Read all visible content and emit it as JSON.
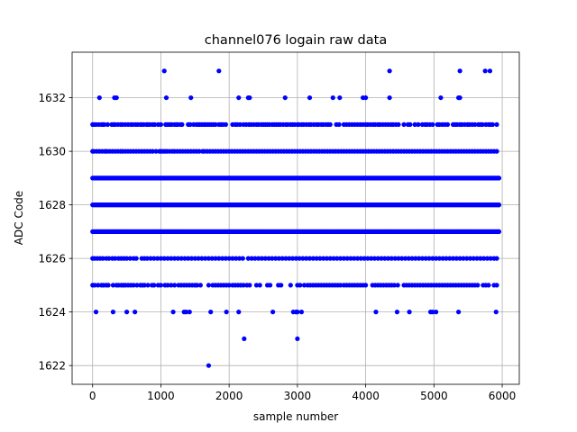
{
  "chart_data": {
    "type": "scatter",
    "title": "channel076 logain raw data",
    "xlabel": "sample number",
    "ylabel": "ADC Code",
    "xlim": [
      -300,
      6250
    ],
    "ylim": [
      1621.3,
      1633.7
    ],
    "xticks": [
      0,
      1000,
      2000,
      3000,
      4000,
      5000,
      6000
    ],
    "yticks": [
      1622,
      1624,
      1626,
      1628,
      1630,
      1632
    ],
    "xtick_labels": [
      "0",
      "1000",
      "2000",
      "3000",
      "4000",
      "5000",
      "6000"
    ],
    "ytick_labels": [
      "1622",
      "1624",
      "1626",
      "1628",
      "1630",
      "1632"
    ],
    "grid": true,
    "marker_color": "#0000ff",
    "n_samples": 6000,
    "series": [
      {
        "values_by_level": [
          {
            "y": 1633,
            "x": [
              1050,
              1850,
              4350,
              5380,
              5750,
              5820
            ]
          },
          {
            "y": 1632,
            "x": [
              100,
              320,
              350,
              1080,
              1440,
              2140,
              2280,
              2300,
              2820,
              3180,
              3520,
              3620,
              3960,
              4000,
              4350,
              5100,
              5360,
              5380
            ]
          },
          {
            "y": 1631,
            "x": [
              0,
              20,
              50,
              90,
              130,
              150,
              170,
              220,
              280,
              310,
              330,
              370,
              410,
              440,
              480,
              520,
              560,
              590,
              630,
              660,
              700,
              720,
              750,
              790,
              810,
              840,
              880,
              910,
              960,
              1000,
              1070,
              1100,
              1130,
              1160,
              1200,
              1230,
              1250,
              1290,
              1310,
              1400,
              1430,
              1480,
              1520,
              1550,
              1570,
              1600,
              1630,
              1650,
              1680,
              1710,
              1740,
              1770,
              1800,
              1850,
              1880,
              1910,
              1950,
              2050,
              2090,
              2120,
              2160,
              2210,
              2250,
              2290,
              2320,
              2360,
              2400,
              2430,
              2470,
              2500,
              2530,
              2560,
              2590,
              2630,
              2660,
              2690,
              2720,
              2750,
              2790,
              2830,
              2860,
              2900,
              2930,
              2960,
              3000,
              3020,
              3060,
              3090,
              3130,
              3170,
              3200,
              3240,
              3280,
              3310,
              3350,
              3380,
              3420,
              3450,
              3480,
              3570,
              3610,
              3680,
              3720,
              3760,
              3800,
              3840,
              3880,
              3920,
              3960,
              4000,
              4030,
              4070,
              4110,
              4140,
              4180,
              4210,
              4250,
              4290,
              4330,
              4370,
              4400,
              4440,
              4480,
              4560,
              4620,
              4650,
              4720,
              4770,
              4830,
              4870,
              4900,
              4940,
              4980,
              5050,
              5080,
              5120,
              5160,
              5200,
              5280,
              5310,
              5340,
              5380,
              5410,
              5450,
              5490,
              5520,
              5560,
              5600,
              5650,
              5680,
              5710,
              5760,
              5800,
              5830,
              5860,
              5920
            ]
          },
          {
            "y": 1630,
            "x": [
              0,
              20,
              60,
              100,
              140,
              180,
              210,
              250,
              290,
              330,
              370,
              410,
              440,
              480,
              520,
              560,
              600,
              640,
              680,
              720,
              760,
              800,
              840,
              880,
              930,
              980,
              1000,
              1030,
              1060,
              1090,
              1130,
              1170,
              1200,
              1240,
              1280,
              1320,
              1360,
              1400,
              1440,
              1480,
              1520,
              1560,
              1610,
              1640,
              1680,
              1720,
              1760,
              1800,
              1840,
              1880,
              1920,
              1960,
              2000,
              2040,
              2080,
              2120,
              2160,
              2200,
              2240,
              2280,
              2320,
              2360,
              2400,
              2440,
              2480,
              2520,
              2560,
              2600,
              2640,
              2680,
              2720,
              2760,
              2800,
              2840,
              2880,
              2920,
              2960,
              3000,
              3040,
              3080,
              3120,
              3160,
              3200,
              3240,
              3280,
              3320,
              3360,
              3400,
              3440,
              3480,
              3520,
              3560,
              3600,
              3640,
              3680,
              3720,
              3760,
              3800,
              3840,
              3880,
              3920,
              3960,
              4000,
              4040,
              4080,
              4120,
              4160,
              4200,
              4240,
              4280,
              4320,
              4360,
              4400,
              4440,
              4480,
              4520,
              4560,
              4600,
              4640,
              4680,
              4720,
              4760,
              4800,
              4840,
              4880,
              4920,
              4960,
              5000,
              5040,
              5080,
              5120,
              5160,
              5200,
              5240,
              5280,
              5320,
              5360,
              5400,
              5440,
              5480,
              5520,
              5560,
              5600,
              5640,
              5680,
              5720,
              5760,
              5800,
              5840,
              5880,
              5920
            ]
          }
        ],
        "dense_levels": [
          1629,
          1628,
          1627
        ],
        "sparse_levels": [
          {
            "y": 1626,
            "x": [
              0,
              30,
              70,
              110,
              150,
              200,
              240,
              290,
              330,
              380,
              420,
              460,
              500,
              550,
              600,
              640,
              720,
              760,
              800,
              850,
              900,
              950,
              1000,
              1050,
              1100,
              1150,
              1200,
              1250,
              1300,
              1350,
              1400,
              1450,
              1500,
              1550,
              1600,
              1650,
              1700,
              1750,
              1800,
              1850,
              1900,
              1950,
              2000,
              2050,
              2100,
              2150,
              2200,
              2280,
              2330,
              2380,
              2430,
              2480,
              2530,
              2580,
              2630,
              2680,
              2730,
              2780,
              2830,
              2880,
              2930,
              2980,
              3030,
              3080,
              3130,
              3180,
              3230,
              3280,
              3330,
              3380,
              3430,
              3480,
              3530,
              3580,
              3630,
              3680,
              3730,
              3780,
              3830,
              3880,
              3930,
              3980,
              4030,
              4080,
              4130,
              4180,
              4230,
              4280,
              4330,
              4380,
              4430,
              4480,
              4530,
              4580,
              4630,
              4680,
              4730,
              4780,
              4830,
              4880,
              4930,
              4980,
              5030,
              5080,
              5130,
              5180,
              5230,
              5280,
              5330,
              5380,
              5430,
              5480,
              5530,
              5580,
              5630,
              5680,
              5730,
              5780,
              5830,
              5880,
              5920
            ]
          },
          {
            "y": 1625,
            "x": [
              0,
              30,
              80,
              130,
              160,
              200,
              230,
              300,
              350,
              380,
              420,
              450,
              480,
              520,
              560,
              600,
              650,
              700,
              730,
              760,
              810,
              870,
              900,
              960,
              1000,
              1060,
              1100,
              1150,
              1200,
              1260,
              1300,
              1340,
              1380,
              1420,
              1460,
              1500,
              1530,
              1580,
              1700,
              1760,
              1800,
              1840,
              1880,
              1920,
              1960,
              2000,
              2050,
              2090,
              2130,
              2170,
              2210,
              2260,
              2300,
              2400,
              2450,
              2560,
              2600,
              2720,
              2760,
              2900,
              3000,
              3040,
              3100,
              3150,
              3190,
              3230,
              3270,
              3310,
              3350,
              3390,
              3430,
              3470,
              3510,
              3550,
              3590,
              3630,
              3680,
              3720,
              3760,
              3800,
              3840,
              3880,
              3920,
              3960,
              4000,
              4100,
              4140,
              4180,
              4220,
              4260,
              4300,
              4340,
              4380,
              4420,
              4470,
              4560,
              4600,
              4640,
              4680,
              4720,
              4760,
              4800,
              4840,
              4880,
              4920,
              4960,
              5000,
              5040,
              5080,
              5120,
              5160,
              5200,
              5240,
              5280,
              5320,
              5360,
              5400,
              5440,
              5480,
              5520,
              5560,
              5600,
              5640,
              5720,
              5760,
              5800,
              5880,
              5920
            ]
          },
          {
            "y": 1624,
            "x": [
              50,
              300,
              500,
              620,
              1180,
              1340,
              1370,
              1420,
              1730,
              1960,
              2140,
              2640,
              2940,
              2980,
              3000,
              3060,
              4150,
              4460,
              4640,
              4950,
              4980,
              5030,
              5360,
              5910
            ]
          },
          {
            "y": 1623,
            "x": [
              2220,
              3000
            ]
          },
          {
            "y": 1622,
            "x": [
              1700
            ]
          }
        ]
      }
    ]
  }
}
